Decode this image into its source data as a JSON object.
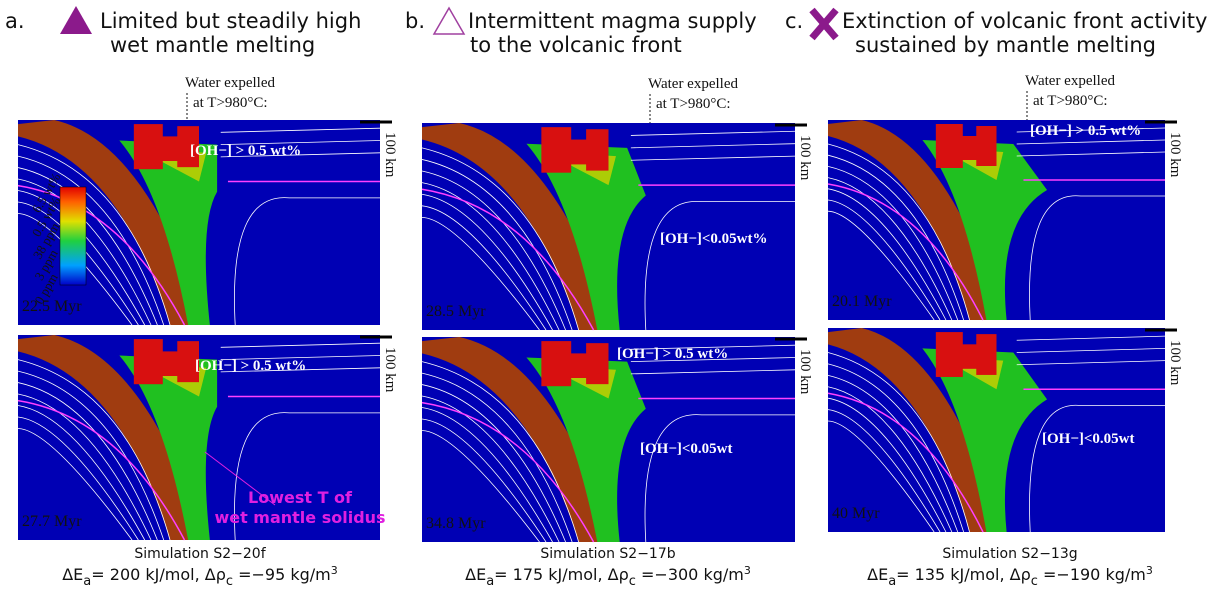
{
  "colorbar_labels": [
    "6.5 wt%",
    "0.5 wt%",
    "38 ppm",
    "3 ppm",
    "0 ppm"
  ],
  "legend": [
    "Lowest T of",
    "wet mantle solidus"
  ],
  "panels": [
    {
      "label": "a.",
      "title": [
        "Limited but steadily high",
        "wet mantle melting"
      ],
      "water": [
        "Water expelled",
        "at T>980°C:"
      ],
      "images": [
        {
          "time": "22.5 Myr",
          "scale": "100 km",
          "annotations": [
            "[OH−] > 0.5 wt%"
          ]
        },
        {
          "time": "27.7 Myr",
          "scale": "100 km",
          "annotations": [
            "[OH−] > 0.5 wt%"
          ]
        }
      ],
      "simulation": "Simulation S2−20f",
      "params": {
        "de": "ΔE",
        "de_sub": "a",
        "mid": "= 200 kJ/mol, Δρ",
        "dr_sub": "c",
        "tail": " =−95 kg/m",
        "sup": "3"
      }
    },
    {
      "label": "b.",
      "title": [
        "Intermittent magma supply",
        "to the volcanic front"
      ],
      "water": [
        "Water expelled",
        "at T>980°C:"
      ],
      "images": [
        {
          "time": "28.5 Myr",
          "scale": "100 km",
          "annotations": [
            "[OH−]<0.05wt%"
          ]
        },
        {
          "time": "34.8 Myr",
          "scale": "100 km",
          "annotations": [
            "[OH−] > 0.5 wt%",
            "[OH−]<0.05wt"
          ]
        }
      ],
      "simulation": "Simulation S2−17b",
      "params": {
        "de": "ΔE",
        "de_sub": "a",
        "mid": "= 175 kJ/mol, Δρ",
        "dr_sub": "c",
        "tail": " =−300 kg/m",
        "sup": "3"
      }
    },
    {
      "label": "c.",
      "title": [
        "Extinction of volcanic front activity",
        "sustained by mantle melting"
      ],
      "water": [
        "Water expelled",
        "at T>980°C:"
      ],
      "images": [
        {
          "time": "20.1 Myr",
          "scale": "100 km",
          "annotations": [
            "[OH−] > 0.5 wt%"
          ]
        },
        {
          "time": "40 Myr",
          "scale": "100 km",
          "annotations": [
            "[OH−]<0.05wt"
          ]
        }
      ],
      "simulation": "Simulation S2−13g",
      "params": {
        "de": "ΔE",
        "de_sub": "a",
        "mid": "= 135 kJ/mol, Δρ",
        "dr_sub": "c",
        "tail": " =−190 kg/m",
        "sup": "3"
      }
    }
  ]
}
